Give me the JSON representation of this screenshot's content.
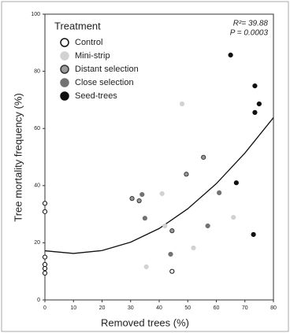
{
  "chart_data": {
    "type": "scatter",
    "x_label": "Removed trees (%)",
    "y_label": "Tree mortality frequency (%)",
    "legend_title": "Treatment",
    "legend_position": "upper left",
    "annotations": [
      "R²= 39.88",
      "P = 0.0003"
    ],
    "xlim": [
      0,
      80
    ],
    "ylim": [
      0,
      100
    ],
    "xticks": [
      0,
      10,
      20,
      30,
      40,
      50,
      60,
      70,
      80
    ],
    "yticks": [
      0,
      20,
      40,
      60,
      80,
      100
    ],
    "series": [
      {
        "name": "Control",
        "color": "#ffffff",
        "edge": "#111111",
        "x": [
          0,
          0,
          0,
          0,
          0,
          0,
          44.5
        ],
        "values": [
          33.8,
          30.9,
          15,
          12.4,
          11,
          9.4,
          10
        ]
      },
      {
        "name": "Mini-strip",
        "color": "#d2d2d2",
        "edge": "#d2d2d2",
        "x": [
          35.5,
          41,
          42,
          48,
          52,
          66
        ],
        "values": [
          11.6,
          37.2,
          25.9,
          68.6,
          18.2,
          28.9
        ]
      },
      {
        "name": "Distant selection",
        "color": "#9a9a9a",
        "edge": "#333333",
        "x": [
          30.5,
          33,
          44.5,
          49.5,
          55.5
        ],
        "values": [
          35.5,
          34.7,
          24.2,
          44,
          49.9
        ]
      },
      {
        "name": "Close selection",
        "color": "#727272",
        "edge": "#727272",
        "x": [
          34,
          35,
          44,
          57,
          61
        ],
        "values": [
          36.9,
          28.6,
          16,
          25.9,
          37.5
        ]
      },
      {
        "name": "Seed-trees",
        "color": "#111111",
        "edge": "#111111",
        "x": [
          65,
          73.5,
          75,
          73.5,
          67,
          73
        ],
        "values": [
          85.7,
          74.9,
          68.6,
          65.6,
          41,
          22.9
        ]
      }
    ],
    "fit": {
      "color": "#111111",
      "x": [
        0,
        10,
        20,
        30,
        40,
        50,
        60,
        70,
        80
      ],
      "values": [
        17.2,
        16.27,
        17.28,
        20.22,
        25,
        31.9,
        40.7,
        51.4,
        63.8
      ]
    }
  }
}
